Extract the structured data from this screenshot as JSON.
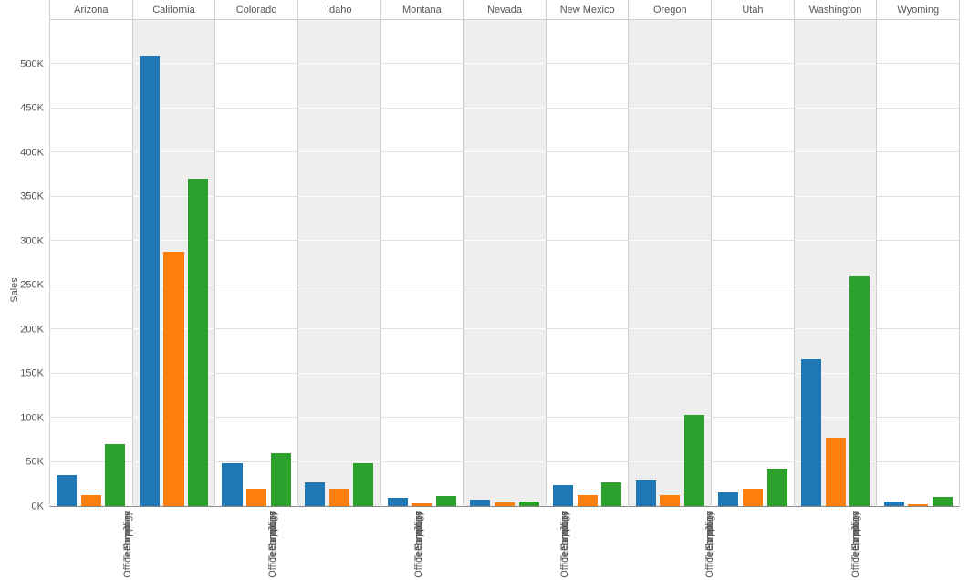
{
  "chart": {
    "type": "bar",
    "y_axis": {
      "label": "Sales",
      "min": 0,
      "max": 550000,
      "tick_step": 50000,
      "ticks": [
        {
          "value": 0,
          "label": "0K"
        },
        {
          "value": 50000,
          "label": "50K"
        },
        {
          "value": 100000,
          "label": "100K"
        },
        {
          "value": 150000,
          "label": "150K"
        },
        {
          "value": 200000,
          "label": "200K"
        },
        {
          "value": 250000,
          "label": "250K"
        },
        {
          "value": 300000,
          "label": "300K"
        },
        {
          "value": 350000,
          "label": "350K"
        },
        {
          "value": 400000,
          "label": "400K"
        },
        {
          "value": 450000,
          "label": "450K"
        },
        {
          "value": 500000,
          "label": "500K"
        }
      ],
      "label_fontsize": 11,
      "tick_fontsize": 11
    },
    "categories": [
      "Furniture",
      "Office Supplies",
      "Technology"
    ],
    "category_colors": {
      "Furniture": "#1f77b4",
      "Office Supplies": "#ff7f0e",
      "Technology": "#2ca02c"
    },
    "panels": [
      {
        "state": "Arizona",
        "shaded": false,
        "values": {
          "Furniture": 35000,
          "Office Supplies": 12000,
          "Technology": 70000
        }
      },
      {
        "state": "California",
        "shaded": true,
        "values": {
          "Furniture": 510000,
          "Office Supplies": 288000,
          "Technology": 370000
        }
      },
      {
        "state": "Colorado",
        "shaded": false,
        "values": {
          "Furniture": 48000,
          "Office Supplies": 20000,
          "Technology": 60000
        }
      },
      {
        "state": "Idaho",
        "shaded": true,
        "values": {
          "Furniture": 27000,
          "Office Supplies": 20000,
          "Technology": 49000
        }
      },
      {
        "state": "Montana",
        "shaded": false,
        "values": {
          "Furniture": 9000,
          "Office Supplies": 3000,
          "Technology": 11000
        }
      },
      {
        "state": "Nevada",
        "shaded": true,
        "values": {
          "Furniture": 7000,
          "Office Supplies": 4000,
          "Technology": 5000
        }
      },
      {
        "state": "New Mexico",
        "shaded": false,
        "values": {
          "Furniture": 24000,
          "Office Supplies": 12000,
          "Technology": 27000
        }
      },
      {
        "state": "Oregon",
        "shaded": true,
        "values": {
          "Furniture": 30000,
          "Office Supplies": 12000,
          "Technology": 103000
        }
      },
      {
        "state": "Utah",
        "shaded": false,
        "values": {
          "Furniture": 16000,
          "Office Supplies": 20000,
          "Technology": 42000
        }
      },
      {
        "state": "Washington",
        "shaded": true,
        "values": {
          "Furniture": 166000,
          "Office Supplies": 77000,
          "Technology": 260000
        }
      },
      {
        "state": "Wyoming",
        "shaded": false,
        "values": {
          "Furniture": 5000,
          "Office Supplies": 2000,
          "Technology": 10000
        }
      }
    ],
    "background_color": "#ffffff",
    "shaded_panel_color": "#eeeeee",
    "gridline_color_light": "rgba(0,0,0,0.12)",
    "gridline_color_shaded": "rgba(255,255,255,0.9)",
    "axis_line_color": "#888888",
    "panel_border_color": "#d0d0d0",
    "font_family": "Arial",
    "header_fontsize": 11,
    "xlabel_fontsize": 11
  }
}
